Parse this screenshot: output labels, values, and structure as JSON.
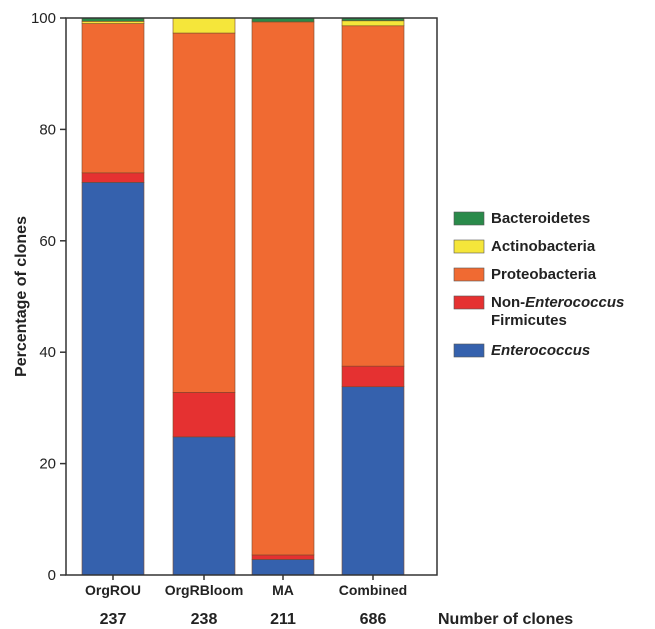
{
  "chart_data": {
    "type": "bar",
    "stacked": true,
    "ylabel": "Percentage of clones",
    "ylim": [
      0,
      100
    ],
    "yticks": [
      "0",
      "20",
      "40",
      "60",
      "80",
      "100"
    ],
    "categories": [
      "OrgROU",
      "OrgRBloom",
      "MA",
      "Combined"
    ],
    "counts": [
      "237",
      "238",
      "211",
      "686"
    ],
    "counts_label": "Number of clones",
    "legend_position": "right",
    "series": [
      {
        "name": "Enterococcus",
        "legend_parts": [
          {
            "text": "Enterococcus",
            "italic": true
          }
        ],
        "color": "#3561ad",
        "values": [
          70.5,
          24.8,
          2.8,
          33.8
        ]
      },
      {
        "name": "Non-Enterococcus Firmicutes",
        "legend_parts": [
          {
            "text": "Non-",
            "italic": false
          },
          {
            "text": "Enterococcus",
            "italic": true
          }
        ],
        "legend_line2": "Firmicutes",
        "color": "#e53131",
        "values": [
          1.7,
          8.0,
          0.8,
          3.7
        ]
      },
      {
        "name": "Proteobacteria",
        "legend_parts": [
          {
            "text": "Proteobacteria",
            "italic": false
          }
        ],
        "color": "#f06a32",
        "values": [
          26.8,
          64.5,
          95.7,
          61.1
        ]
      },
      {
        "name": "Actinobacteria",
        "legend_parts": [
          {
            "text": "Actinobacteria",
            "italic": false
          }
        ],
        "color": "#f5e63a",
        "values": [
          0.4,
          2.7,
          0.0,
          0.9
        ]
      },
      {
        "name": "Bacteroidetes",
        "legend_parts": [
          {
            "text": "Bacteroidetes",
            "italic": false
          }
        ],
        "color": "#2a8a4a",
        "values": [
          0.6,
          0.0,
          0.7,
          0.5
        ]
      }
    ]
  }
}
